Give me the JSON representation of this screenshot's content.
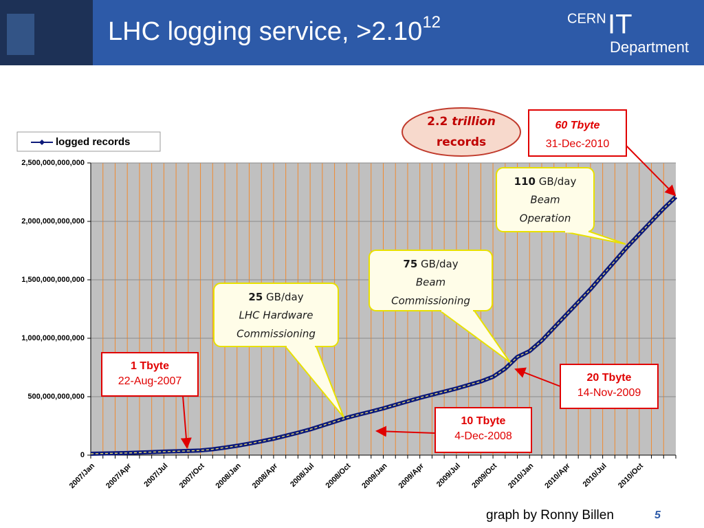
{
  "header": {
    "title": "LHC logging service, >2.10",
    "title_sup": "12",
    "logo": {
      "top": "CERN",
      "big": "IT",
      "bottom": "Department"
    }
  },
  "chart_data": {
    "type": "line",
    "categories": [
      "2007/Jan",
      null,
      null,
      "2007/Apr",
      null,
      null,
      "2007/Jul",
      null,
      null,
      "2007/Oct",
      null,
      null,
      "2008/Jan",
      null,
      null,
      "2008/Apr",
      null,
      null,
      "2008/Jul",
      null,
      null,
      "2008/Oct",
      null,
      null,
      "2009/Jan",
      null,
      null,
      "2009/Apr",
      null,
      null,
      "2009/Jul",
      null,
      null,
      "2009/Oct",
      null,
      null,
      "2010/Jan",
      null,
      null,
      "2010/Apr",
      null,
      null,
      "2010/Jul",
      null,
      null,
      "2010/Oct",
      null,
      null,
      null
    ],
    "series": [
      {
        "name": "logged records",
        "color": "#0d1a7a",
        "values": [
          12000000000.0,
          14000000000.0,
          16000000000.0,
          18000000000.0,
          22000000000.0,
          26000000000.0,
          30000000000.0,
          33000000000.0,
          36000000000.0,
          40000000000.0,
          50000000000.0,
          64000000000.0,
          80000000000.0,
          98000000000.0,
          118000000000.0,
          140000000000.0,
          166000000000.0,
          192000000000.0,
          220000000000.0,
          253000000000.0,
          286000000000.0,
          320000000000.0,
          347000000000.0,
          373000000000.0,
          400000000000.0,
          430000000000.0,
          460000000000.0,
          490000000000.0,
          517000000000.0,
          543000000000.0,
          570000000000.0,
          600000000000.0,
          630000000000.0,
          670000000000.0,
          740000000000.0,
          840000000000.0,
          890000000000.0,
          980000000000.0,
          1090000000000.0,
          1200000000000.0,
          1310000000000.0,
          1420000000000.0,
          1540000000000.0,
          1660000000000.0,
          1780000000000.0,
          1890000000000.0,
          2000000000000.0,
          2110000000000.0,
          2210000000000.0
        ]
      }
    ],
    "ylim": [
      0,
      2500000000000.0
    ],
    "yticks": [
      0,
      {
        "value": 500000000000.0,
        "label": "500,000,000,000"
      },
      {
        "value": 1000000000000.0,
        "label": "1,000,000,000,000"
      },
      {
        "value": 1500000000000.0,
        "label": "1,500,000,000,000"
      },
      {
        "value": 2000000000000.0,
        "label": "2,000,000,000,000"
      },
      {
        "value": 2500000000000.0,
        "label": "2,500,000,000,000"
      }
    ],
    "grid": true,
    "legend": "top-left",
    "oval": {
      "num": "2.2",
      "word": "trillion",
      "rest": "records"
    },
    "rates": [
      {
        "num": "110",
        "unit": "GB/day",
        "lines": [
          "Beam",
          "Operation"
        ]
      },
      {
        "num": "75",
        "unit": "GB/day",
        "lines": [
          "Beam",
          "Commissioning"
        ]
      },
      {
        "num": "25",
        "unit": "GB/day",
        "lines": [
          "LHC Hardware",
          "Commissioning"
        ]
      }
    ],
    "milestones": [
      {
        "size": "1 Tbyte",
        "date": "22-Aug-2007"
      },
      {
        "size": "60 Tbyte",
        "date": "31-Dec-2010"
      },
      {
        "size": "20 Tbyte",
        "date": "14-Nov-2009"
      },
      {
        "size": "10 Tbyte",
        "date": "4-Dec-2008"
      }
    ]
  },
  "footer": {
    "credit": "graph by Ronny Billen",
    "page": "5"
  }
}
